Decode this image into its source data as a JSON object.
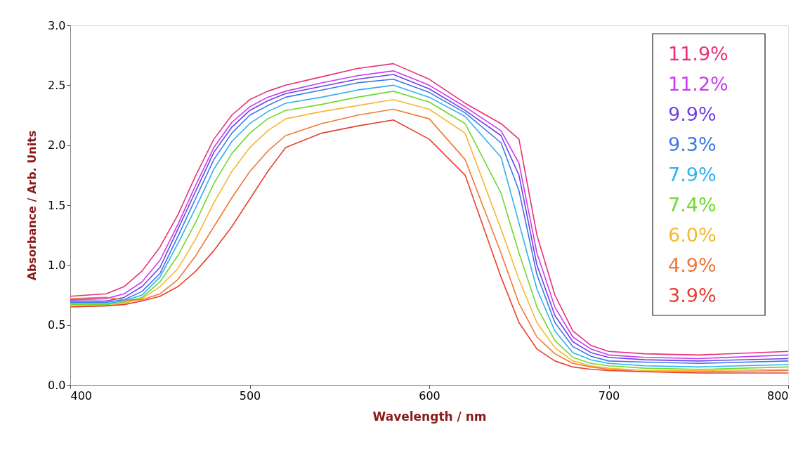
{
  "chart_data": {
    "type": "line",
    "xlabel": "Wavelength / nm",
    "ylabel": "Absorbance / Arb. Units",
    "x": [
      400,
      420,
      430,
      440,
      450,
      460,
      470,
      480,
      490,
      500,
      510,
      520,
      540,
      560,
      580,
      600,
      620,
      640,
      650,
      660,
      670,
      680,
      690,
      700,
      720,
      750,
      800
    ],
    "series": [
      {
        "name": "11.9%",
        "color": "#e8307a",
        "values": [
          0.74,
          0.76,
          0.82,
          0.95,
          1.15,
          1.42,
          1.75,
          2.05,
          2.25,
          2.38,
          2.45,
          2.5,
          2.57,
          2.64,
          2.68,
          2.55,
          2.35,
          2.18,
          2.05,
          1.25,
          0.75,
          0.45,
          0.33,
          0.28,
          0.26,
          0.25,
          0.28
        ]
      },
      {
        "name": "11.2%",
        "color": "#c83cf0",
        "values": [
          0.71,
          0.72,
          0.76,
          0.86,
          1.04,
          1.34,
          1.67,
          1.98,
          2.19,
          2.32,
          2.4,
          2.45,
          2.52,
          2.58,
          2.62,
          2.5,
          2.32,
          2.12,
          1.85,
          1.1,
          0.65,
          0.4,
          0.3,
          0.25,
          0.23,
          0.22,
          0.25
        ]
      },
      {
        "name": "9.9%",
        "color": "#7040e8",
        "values": [
          0.7,
          0.7,
          0.73,
          0.82,
          0.98,
          1.3,
          1.62,
          1.94,
          2.15,
          2.29,
          2.37,
          2.43,
          2.49,
          2.55,
          2.59,
          2.47,
          2.29,
          2.08,
          1.75,
          1.0,
          0.58,
          0.36,
          0.27,
          0.23,
          0.21,
          0.2,
          0.22
        ]
      },
      {
        "name": "9.3%",
        "color": "#3c78e8",
        "values": [
          0.69,
          0.69,
          0.71,
          0.78,
          0.93,
          1.24,
          1.56,
          1.88,
          2.1,
          2.25,
          2.33,
          2.4,
          2.46,
          2.52,
          2.55,
          2.44,
          2.27,
          2.02,
          1.62,
          0.92,
          0.52,
          0.32,
          0.24,
          0.2,
          0.19,
          0.18,
          0.2
        ]
      },
      {
        "name": "7.9%",
        "color": "#30b0f0",
        "values": [
          0.68,
          0.68,
          0.7,
          0.75,
          0.9,
          1.18,
          1.48,
          1.8,
          2.03,
          2.18,
          2.28,
          2.35,
          2.4,
          2.46,
          2.5,
          2.4,
          2.24,
          1.9,
          1.35,
          0.8,
          0.45,
          0.27,
          0.21,
          0.18,
          0.16,
          0.15,
          0.17
        ]
      },
      {
        "name": "7.4%",
        "color": "#70d830",
        "values": [
          0.67,
          0.67,
          0.69,
          0.73,
          0.86,
          1.08,
          1.36,
          1.68,
          1.93,
          2.1,
          2.22,
          2.29,
          2.34,
          2.4,
          2.45,
          2.36,
          2.18,
          1.6,
          1.1,
          0.65,
          0.37,
          0.23,
          0.18,
          0.16,
          0.14,
          0.13,
          0.15
        ]
      },
      {
        "name": "6.0%",
        "color": "#f5b830",
        "values": [
          0.66,
          0.66,
          0.68,
          0.72,
          0.82,
          0.97,
          1.22,
          1.52,
          1.78,
          1.98,
          2.12,
          2.22,
          2.28,
          2.33,
          2.38,
          2.3,
          2.1,
          1.3,
          0.88,
          0.52,
          0.31,
          0.2,
          0.16,
          0.14,
          0.12,
          0.12,
          0.13
        ]
      },
      {
        "name": "4.9%",
        "color": "#f07838",
        "values": [
          0.72,
          0.73,
          0.71,
          0.71,
          0.76,
          0.88,
          1.08,
          1.32,
          1.56,
          1.78,
          1.95,
          2.08,
          2.18,
          2.25,
          2.3,
          2.22,
          1.88,
          1.1,
          0.68,
          0.4,
          0.26,
          0.18,
          0.15,
          0.13,
          0.11,
          0.11,
          0.12
        ]
      },
      {
        "name": "3.9%",
        "color": "#e84030",
        "values": [
          0.65,
          0.66,
          0.67,
          0.7,
          0.74,
          0.82,
          0.95,
          1.12,
          1.32,
          1.55,
          1.78,
          1.98,
          2.1,
          2.16,
          2.21,
          2.05,
          1.75,
          0.9,
          0.52,
          0.3,
          0.2,
          0.15,
          0.13,
          0.12,
          0.11,
          0.1,
          0.1
        ]
      }
    ],
    "xlim": [
      400,
      800
    ],
    "xticks": [
      400,
      500,
      600,
      700,
      800
    ],
    "ylim": [
      0,
      3
    ],
    "yticks": [
      {
        "value": 0,
        "label": "0.0"
      },
      {
        "value": 0.5,
        "label": "0.5"
      },
      {
        "value": 1,
        "label": "1.0"
      },
      {
        "value": 1.5,
        "label": "1.5"
      },
      {
        "value": 2,
        "label": "2.0"
      },
      {
        "value": 2.5,
        "label": "2.5"
      },
      {
        "value": 3,
        "label": "3.0"
      }
    ],
    "grid": false,
    "legend": "top right",
    "marker": "none",
    "line_style": "solid"
  }
}
